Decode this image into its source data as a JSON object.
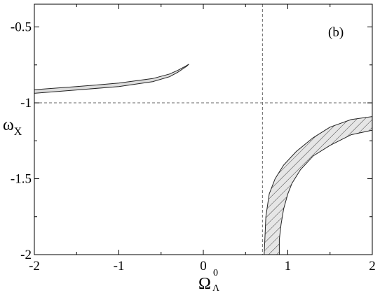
{
  "chart_data": {
    "type": "area",
    "panel_label": "(b)",
    "xlabel": {
      "symbol": "Ω",
      "superscript": "0",
      "subscript": "Λ"
    },
    "ylabel": {
      "symbol": "ω",
      "subscript": "X"
    },
    "xlim": [
      -2,
      2
    ],
    "ylim": [
      -2,
      -0.35
    ],
    "x_ticks": [
      -2,
      -1,
      0,
      1,
      2
    ],
    "x_tick_labels": [
      "-2",
      "-1",
      "0",
      "1",
      "2"
    ],
    "y_ticks": [
      -2,
      -1.5,
      -1,
      -0.5
    ],
    "y_tick_labels": [
      "-2",
      "-1.5",
      "-1",
      "-0.5"
    ],
    "grid": false,
    "reference_lines": [
      {
        "orientation": "horizontal",
        "value": -1,
        "style": "dashed"
      },
      {
        "orientation": "vertical",
        "value": 0.7,
        "style": "dashed"
      }
    ],
    "regions": [
      {
        "fill": "solid-light-gray",
        "upper": [
          [
            -2,
            -0.913
          ],
          [
            -1.5,
            -0.893
          ],
          [
            -1.0,
            -0.87
          ],
          [
            -0.6,
            -0.84
          ],
          [
            -0.4,
            -0.81
          ],
          [
            -0.3,
            -0.785
          ],
          [
            -0.2,
            -0.755
          ],
          [
            -0.17,
            -0.745
          ]
        ],
        "lower": [
          [
            -0.17,
            -0.745
          ],
          [
            -0.2,
            -0.76
          ],
          [
            -0.3,
            -0.798
          ],
          [
            -0.4,
            -0.828
          ],
          [
            -0.6,
            -0.86
          ],
          [
            -1.0,
            -0.893
          ],
          [
            -1.5,
            -0.915
          ],
          [
            -2,
            -0.937
          ]
        ]
      },
      {
        "fill": "hatched-diagonal",
        "upper": [
          [
            0.72,
            -2
          ],
          [
            0.74,
            -1.75
          ],
          [
            0.78,
            -1.6
          ],
          [
            0.85,
            -1.5
          ],
          [
            0.95,
            -1.41
          ],
          [
            1.1,
            -1.32
          ],
          [
            1.3,
            -1.23
          ],
          [
            1.5,
            -1.16
          ],
          [
            1.75,
            -1.11
          ],
          [
            2,
            -1.09
          ]
        ],
        "lower": [
          [
            2,
            -1.18
          ],
          [
            1.75,
            -1.21
          ],
          [
            1.5,
            -1.28
          ],
          [
            1.3,
            -1.35
          ],
          [
            1.15,
            -1.44
          ],
          [
            1.05,
            -1.53
          ],
          [
            1.0,
            -1.6
          ],
          [
            0.95,
            -1.7
          ],
          [
            0.92,
            -1.8
          ],
          [
            0.9,
            -1.9
          ],
          [
            0.9,
            -2
          ]
        ]
      }
    ]
  }
}
